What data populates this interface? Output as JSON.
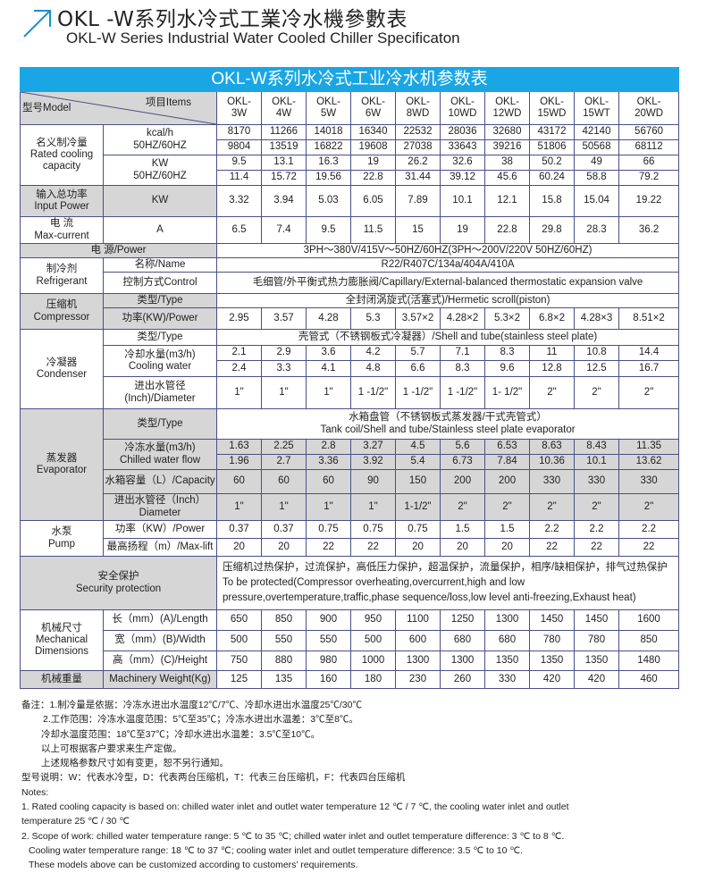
{
  "header": {
    "title_cn": "OKL -W系列水冷式工業冷水機參數表",
    "title_en": "OKL-W Series Industrial Water Cooled Chiller Specificaton",
    "accent": "#1a8fd0"
  },
  "table": {
    "banner": "OKL-W系列水冷式工业冷水机参数表",
    "corner_model": "型号Model",
    "corner_items": "项目Items",
    "models": [
      "OKL-\n3W",
      "OKL-\n4W",
      "OKL-\n5W",
      "OKL-\n6W",
      "OKL-\n8WD",
      "OKL-\n10WD",
      "OKL-\n12WD",
      "OKL-\n15WD",
      "OKL-\n15WT",
      "OKL-\n20WD"
    ],
    "cooling": {
      "label": "名义制冷量\nRated cooling\ncapacity",
      "unit1": "kcal/h\n50HZ/60HZ",
      "unit2": "KW\n50HZ/60HZ",
      "kcal_50": [
        "8170",
        "11266",
        "14018",
        "16340",
        "22532",
        "28036",
        "32680",
        "43172",
        "42140",
        "56760"
      ],
      "kcal_60": [
        "9804",
        "13519",
        "16822",
        "19608",
        "27038",
        "33643",
        "39216",
        "51806",
        "50568",
        "68112"
      ],
      "kw_50": [
        "9.5",
        "13.1",
        "16.3",
        "19",
        "26.2",
        "32.6",
        "38",
        "50.2",
        "49",
        "66"
      ],
      "kw_60": [
        "11.4",
        "15.72",
        "19.56",
        "22.8",
        "31.44",
        "39.12",
        "45.6",
        "60.24",
        "58.8",
        "79.2"
      ]
    },
    "input_power": {
      "label": "输入总功率\nInput Power",
      "unit": "KW",
      "values": [
        "3.32",
        "3.94",
        "5.03",
        "6.05",
        "7.89",
        "10.1",
        "12.1",
        "15.8",
        "15.04",
        "19.22"
      ]
    },
    "current": {
      "label": "电  流\nMax-current",
      "unit": "A",
      "values": [
        "6.5",
        "7.4",
        "9.5",
        "11.5",
        "15",
        "19",
        "22.8",
        "29.8",
        "28.3",
        "36.2"
      ]
    },
    "power": {
      "label": "电        源/Power",
      "value": "3PH～380V/415V～50HZ/60HZ(3PH～200V/220V   50HZ/60HZ)"
    },
    "refrigerant": {
      "label": "制冷剂\nRefrigerant",
      "name_label": "名称/Name",
      "name": "R22/R407C/134a/404A/410A",
      "control_label": "控制方式Control",
      "control": "毛细管/外平衡式热力膨胀阀/Capillary/External-balanced thermostatic expansion valve"
    },
    "compressor": {
      "label": "压缩机\nCompressor",
      "type_label": "类型/Type",
      "type": "全封闭涡旋式(活塞式)/Hermetic scroll(piston)",
      "power_label": "功率(KW)/Power",
      "power": [
        "2.95",
        "3.57",
        "4.28",
        "5.3",
        "3.57×2",
        "4.28×2",
        "5.3×2",
        "6.8×2",
        "4.28×3",
        "8.51×2"
      ]
    },
    "condenser": {
      "label": "冷凝器\nCondenser",
      "type_label": "类型/Type",
      "type": "壳管式（不锈钢板式冷凝器）/Shell and tube(stainless steel plate)",
      "water_label": "冷却水量(m3/h)\nCooling water",
      "water_50": [
        "2.1",
        "2.9",
        "3.6",
        "4.2",
        "5.7",
        "7.1",
        "8.3",
        "11",
        "10.8",
        "14.4"
      ],
      "water_60": [
        "2.4",
        "3.3",
        "4.1",
        "4.8",
        "6.6",
        "8.3",
        "9.6",
        "12.8",
        "12.5",
        "16.7"
      ],
      "dia_label": "进出水管径\n(Inch)/Diameter",
      "dia": [
        "1\"",
        "1\"",
        "1\"",
        "1 -1/2\"",
        "1 -1/2\"",
        "1 -1/2\"",
        "1- 1/2\"",
        "2\"",
        "2\"",
        "2\""
      ]
    },
    "evaporator": {
      "label": "蒸发器\nEvaporator",
      "type_label": "类型/Type",
      "type": "水箱盘管（不锈钢板式蒸发器/干式壳管式）\nTank coil/Shell and tube/Stainless steel plate evaporator",
      "flow_label": "冷冻水量(m3/h)\nChilled water flow",
      "flow_50": [
        "1.63",
        "2.25",
        "2.8",
        "3.27",
        "4.5",
        "5.6",
        "6.53",
        "8.63",
        "8.43",
        "11.35"
      ],
      "flow_60": [
        "1.96",
        "2.7",
        "3.36",
        "3.92",
        "5.4",
        "6.73",
        "7.84",
        "10.36",
        "10.1",
        "13.62"
      ],
      "cap_label": "水箱容量（L）/Capacity",
      "cap": [
        "60",
        "60",
        "60",
        "90",
        "150",
        "200",
        "200",
        "330",
        "330",
        "330"
      ],
      "dia_label": "进出水管径（Inch）\nDiameter",
      "dia": [
        "1\"",
        "1\"",
        "1\"",
        "1\"",
        "1-1/2\"",
        "2\"",
        "2\"",
        "2\"",
        "2\"",
        "2\""
      ]
    },
    "pump": {
      "label": "水泵\nPump",
      "power_label": "功率（KW）/Power",
      "power": [
        "0.37",
        "0.37",
        "0.75",
        "0.75",
        "0.75",
        "1.5",
        "1.5",
        "2.2",
        "2.2",
        "2.2"
      ],
      "lift_label": "最高扬程（m）/Max-lift",
      "lift": [
        "20",
        "20",
        "22",
        "22",
        "20",
        "20",
        "20",
        "22",
        "22",
        "22"
      ]
    },
    "security": {
      "label": "安全保护\nSecurity protection",
      "value": "压缩机过热保护，过流保护，高低压力保护，超温保护，流量保护，相序/缺相保护，排气过热保护\nTo be protected(Compressor overheating,overcurrent,high and low\npressure,overtemperature,traffic,phase sequence/loss,low level anti-freezing,Exhaust heat)"
    },
    "dimensions": {
      "label": "机械尺寸\nMechanical\nDimensions",
      "length_label": "长（mm）(A)/Length",
      "length": [
        "650",
        "850",
        "900",
        "950",
        "1100",
        "1250",
        "1300",
        "1450",
        "1450",
        "1600"
      ],
      "width_label": "宽（mm）(B)/Width",
      "width": [
        "500",
        "550",
        "550",
        "500",
        "600",
        "680",
        "680",
        "780",
        "780",
        "850"
      ],
      "height_label": "高（mm）(C)/Height",
      "height": [
        "750",
        "880",
        "980",
        "1000",
        "1300",
        "1300",
        "1350",
        "1350",
        "1350",
        "1480"
      ]
    },
    "weight": {
      "label": "机械重量",
      "unit": "Machinery Weight(Kg)",
      "values": [
        "125",
        "135",
        "160",
        "180",
        "230",
        "260",
        "330",
        "420",
        "420",
        "460"
      ]
    }
  },
  "notes": {
    "cn": [
      "备注：1.制冷量是依据：冷冻水进出水温度12℃/7℃、冷却水进出水温度25℃/30℃",
      "2.工作范围：冷冻水温度范围：5℃至35℃；冷冻水进出水温差：3℃至8℃。",
      "冷却水温度范围：18℃至37℃；冷却水进出水温差：3.5℃至10℃。",
      "以上可根据客户要求来生产定做。",
      "上述规格参数尺寸如有变更，恕不另行通知。",
      "型号说明：W：代表水冷型，D：代表两台压缩机，T：代表三台压缩机，F：代表四台压缩机"
    ],
    "en": [
      "Notes:",
      "1. Rated cooling capacity is based on: chilled water inlet and outlet water temperature 12 ℃ / 7 ℃, the cooling water inlet and outlet",
      "temperature  25 ℃ / 30 ℃",
      "2. Scope of work: chilled water temperature range: 5 ℃ to 35 ℃; chilled water inlet and outlet temperature difference: 3 ℃ to 8 ℃.",
      "Cooling water temperature range: 18 ℃ to 37 ℃; cooling water inlet and outlet temperature difference: 3.5 ℃ to 10 ℃.",
      "These models above can be customized according to customers’   requirements."
    ]
  }
}
